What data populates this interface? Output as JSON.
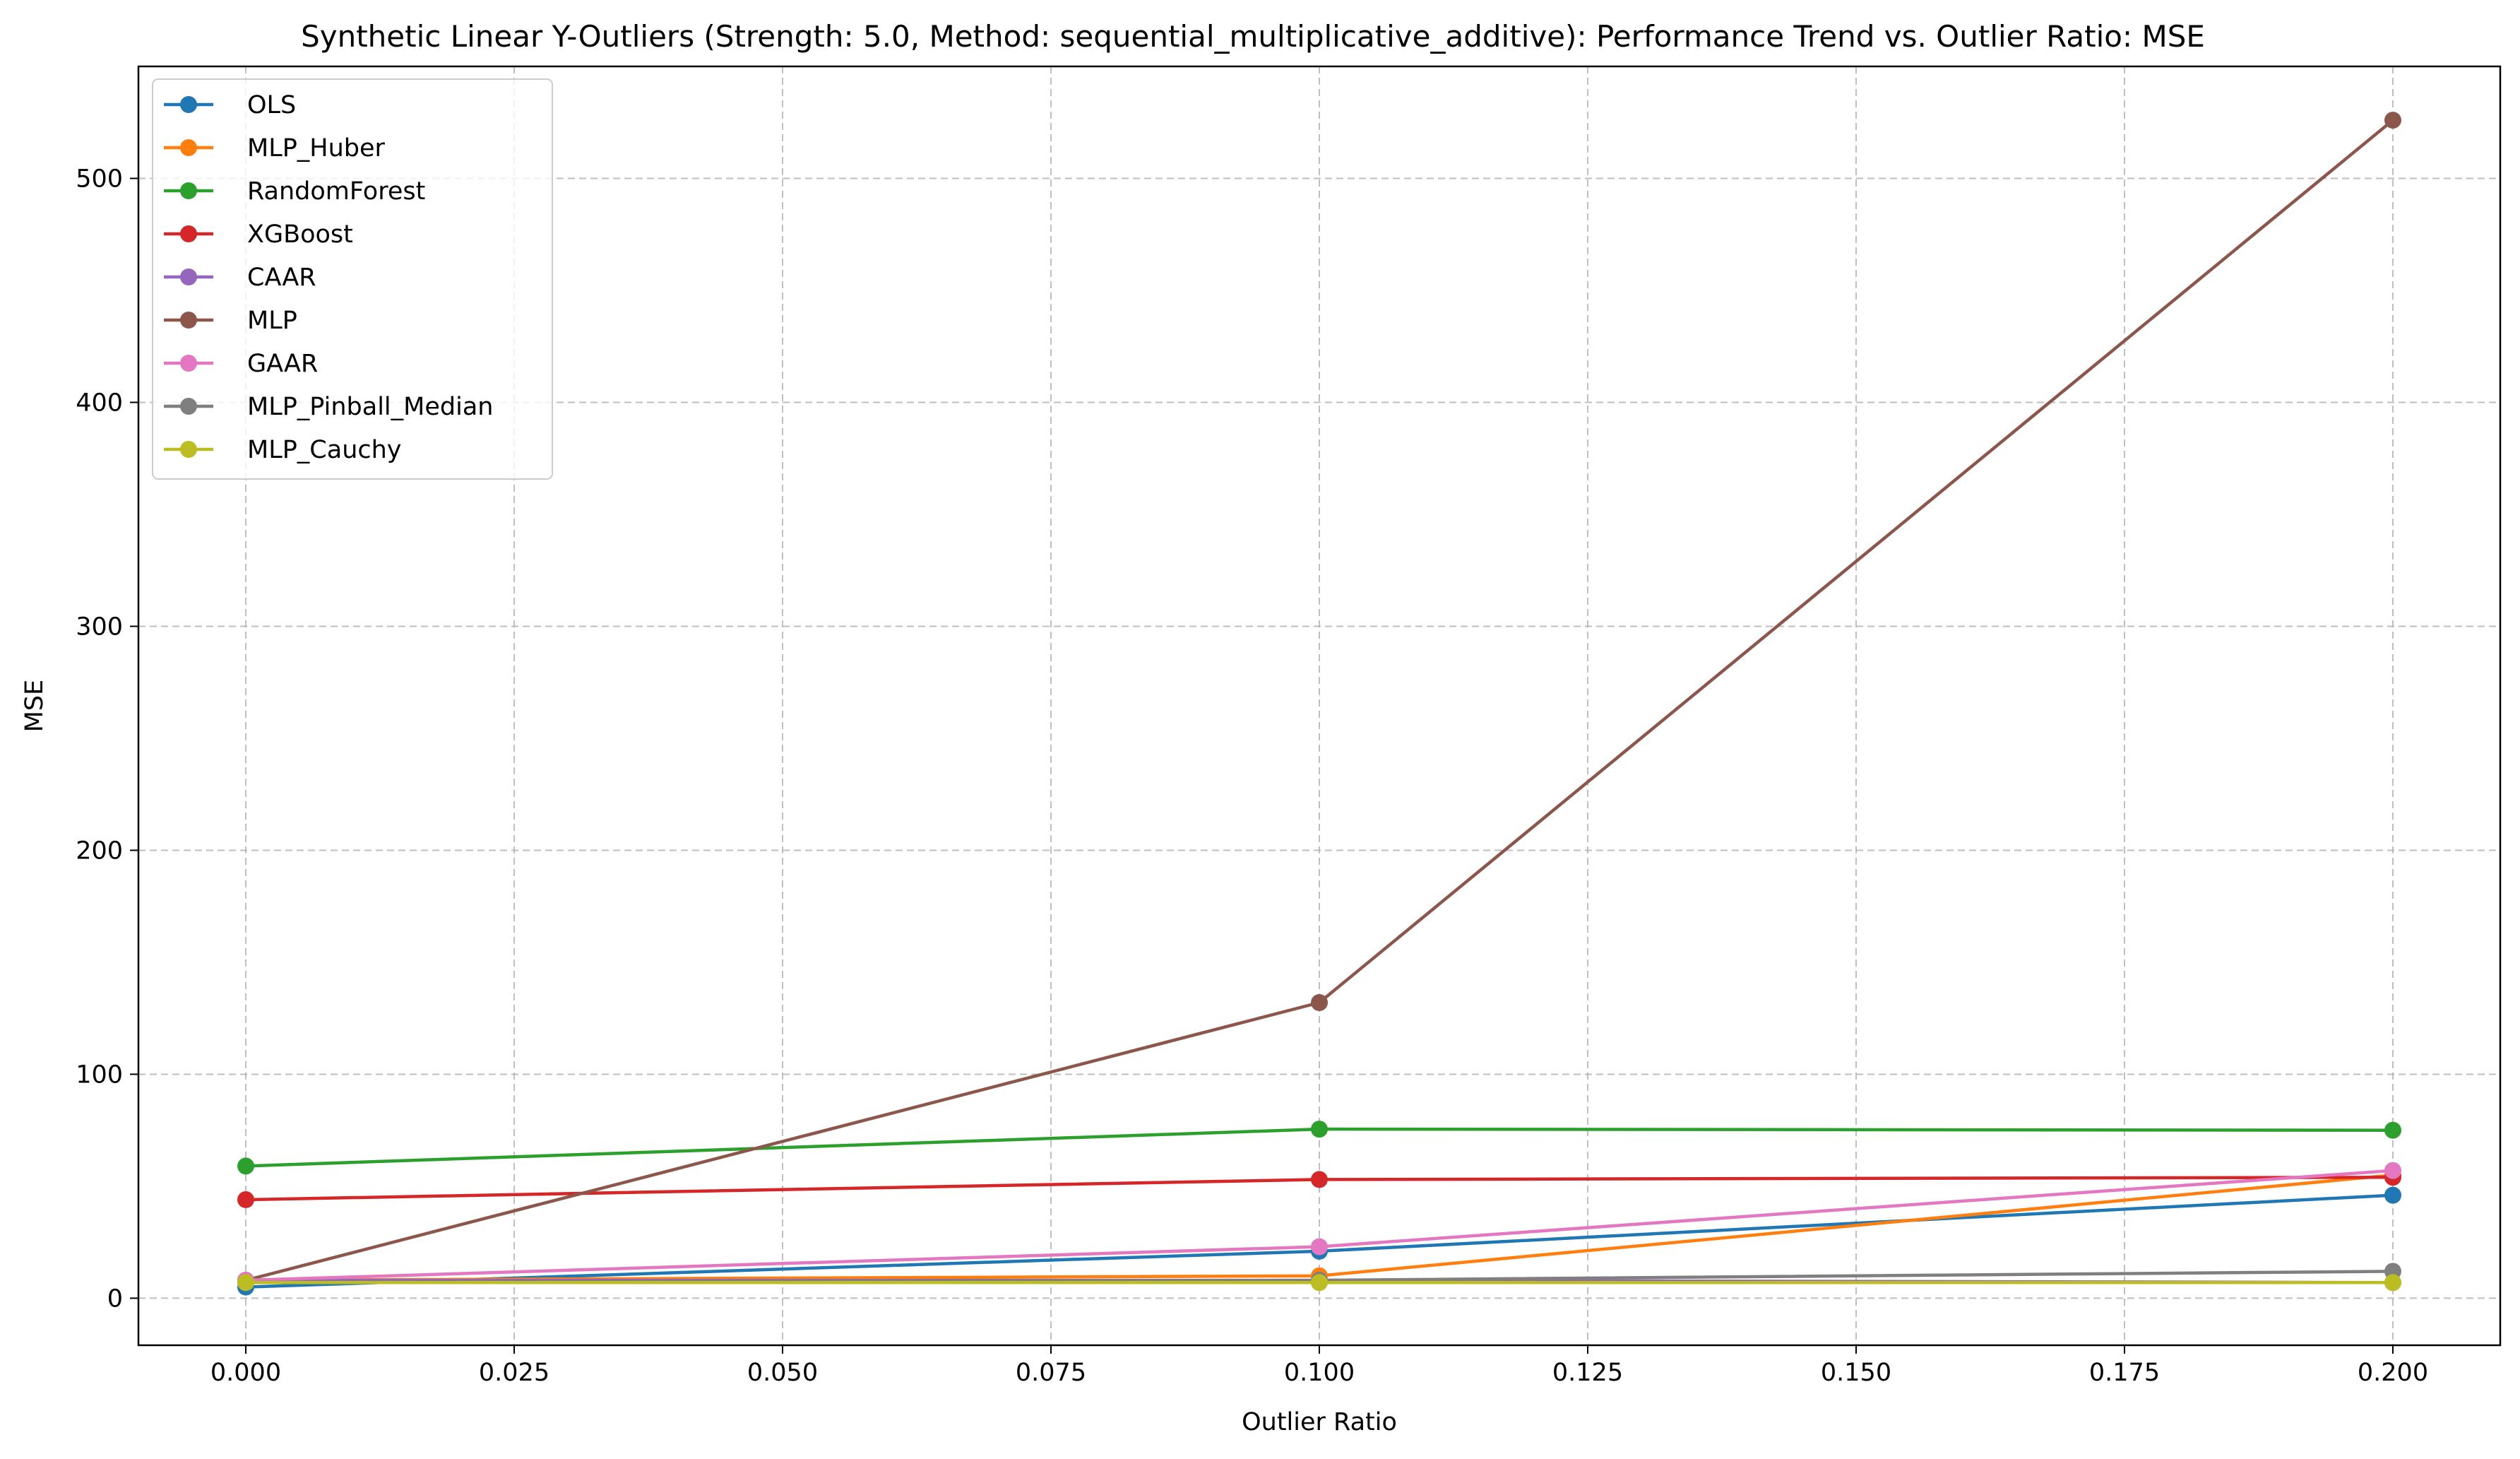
{
  "chart_data": {
    "type": "line",
    "title": "Synthetic Linear Y-Outliers (Strength: 5.0, Method: sequential_multiplicative_additive): Performance Trend vs. Outlier Ratio: MSE",
    "xlabel": "Outlier Ratio",
    "ylabel": "MSE",
    "xlim": [
      -0.01,
      0.21
    ],
    "ylim": [
      -21,
      550
    ],
    "x": [
      0.0,
      0.1,
      0.2
    ],
    "xticks": [
      0.0,
      0.025,
      0.05,
      0.075,
      0.1,
      0.125,
      0.15,
      0.175,
      0.2
    ],
    "xtick_labels": [
      "0.000",
      "0.025",
      "0.050",
      "0.075",
      "0.100",
      "0.125",
      "0.150",
      "0.175",
      "0.200"
    ],
    "yticks": [
      0,
      100,
      200,
      300,
      400,
      500
    ],
    "ytick_labels": [
      "0",
      "100",
      "200",
      "300",
      "400",
      "500"
    ],
    "grid": true,
    "legend_position": "upper-left",
    "series": [
      {
        "name": "OLS",
        "color": "#1f77b4",
        "values": [
          5,
          21,
          46
        ]
      },
      {
        "name": "MLP_Huber",
        "color": "#ff7f0e",
        "values": [
          8,
          10,
          55
        ]
      },
      {
        "name": "RandomForest",
        "color": "#2ca02c",
        "values": [
          59,
          75.5,
          75
        ]
      },
      {
        "name": "XGBoost",
        "color": "#d62728",
        "values": [
          44,
          53,
          54
        ]
      },
      {
        "name": "CAAR",
        "color": "#9467bd",
        "values": [
          8,
          8,
          7
        ]
      },
      {
        "name": "MLP",
        "color": "#8c564b",
        "values": [
          8,
          132,
          526
        ]
      },
      {
        "name": "GAAR",
        "color": "#e377c2",
        "values": [
          8,
          23,
          57
        ]
      },
      {
        "name": "MLP_Pinball_Median",
        "color": "#7f7f7f",
        "values": [
          7,
          8,
          12
        ]
      },
      {
        "name": "MLP_Cauchy",
        "color": "#bcbd22",
        "values": [
          7,
          7,
          7
        ]
      }
    ]
  }
}
